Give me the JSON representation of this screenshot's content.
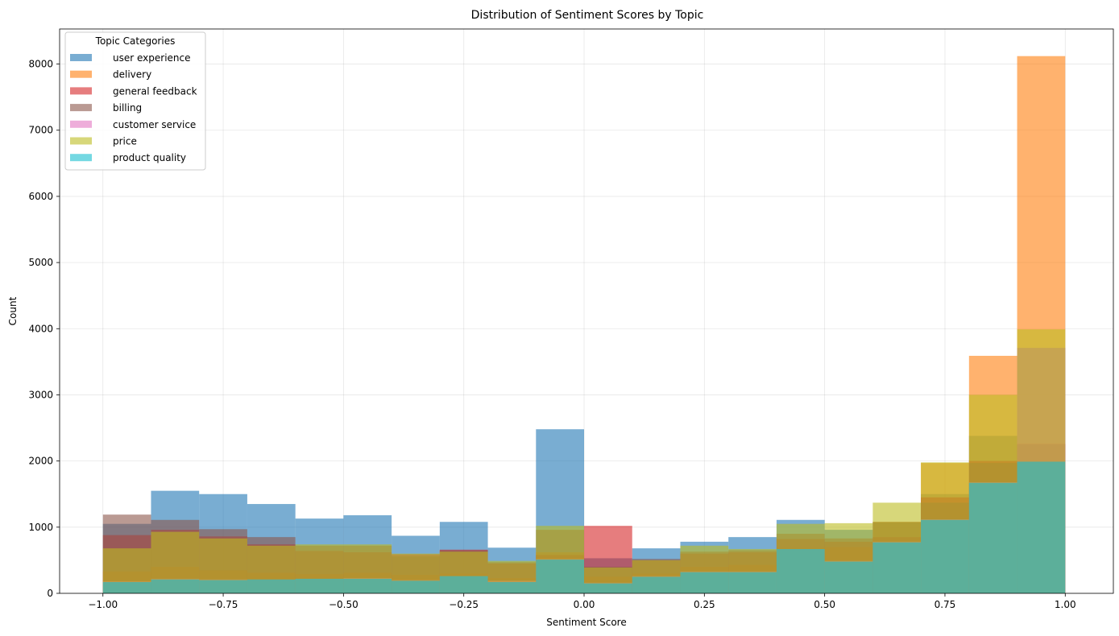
{
  "chart_data": {
    "type": "histogram",
    "title": "Distribution of Sentiment Scores by Topic",
    "xlabel": "Sentiment Score",
    "ylabel": "Count",
    "xlim": [
      -1.09,
      1.1
    ],
    "ylim": [
      0,
      8530
    ],
    "grid": true,
    "legend_title": "Topic Categories",
    "legend_position": "top-left",
    "alpha": 0.6,
    "bin_edges": [
      -1.0,
      -0.9,
      -0.8,
      -0.7,
      -0.6,
      -0.5,
      -0.4,
      -0.3,
      -0.2,
      -0.1,
      0.0,
      0.1,
      0.2,
      0.3,
      0.4,
      0.5,
      0.6,
      0.7,
      0.8,
      0.9,
      1.0
    ],
    "x_ticks": [
      -1.0,
      -0.75,
      -0.5,
      -0.25,
      0.0,
      0.25,
      0.5,
      0.75,
      1.0
    ],
    "x_tick_labels": [
      "−1.00",
      "−0.75",
      "−0.50",
      "−0.25",
      "0.00",
      "0.25",
      "0.50",
      "0.75",
      "1.00"
    ],
    "y_ticks": [
      0,
      1000,
      2000,
      3000,
      4000,
      5000,
      6000,
      7000,
      8000
    ],
    "y_tick_labels": [
      "0",
      "1000",
      "2000",
      "3000",
      "4000",
      "5000",
      "6000",
      "7000",
      "8000"
    ],
    "series": [
      {
        "name": "user experience",
        "color": "#1f77b4",
        "values": [
          1050,
          1550,
          1500,
          1350,
          1130,
          1180,
          870,
          1080,
          690,
          2480,
          530,
          680,
          780,
          850,
          1110,
          960,
          1070,
          1500,
          2380,
          3710
        ]
      },
      {
        "name": "delivery",
        "color": "#ff7f0e",
        "values": [
          330,
          400,
          350,
          310,
          290,
          310,
          280,
          300,
          230,
          620,
          250,
          300,
          400,
          430,
          690,
          700,
          1080,
          1970,
          3590,
          8120
        ]
      },
      {
        "name": "general feedback",
        "color": "#d62728",
        "values": [
          880,
          960,
          860,
          740,
          640,
          620,
          590,
          660,
          450,
          580,
          1020,
          500,
          600,
          620,
          820,
          780,
          850,
          1450,
          2000,
          2260
        ]
      },
      {
        "name": "billing",
        "color": "#8c564b",
        "values": [
          1190,
          1110,
          970,
          850,
          720,
          720,
          560,
          650,
          470,
          960,
          400,
          520,
          630,
          650,
          900,
          830,
          1080,
          1370,
          1970,
          2250
        ]
      },
      {
        "name": "customer service",
        "color": "#e377c2",
        "values": [
          180,
          220,
          210,
          210,
          220,
          230,
          200,
          260,
          190,
          520,
          160,
          260,
          330,
          330,
          670,
          490,
          780,
          1120,
          1680,
          3710
        ]
      },
      {
        "name": "price",
        "color": "#bcbd22",
        "values": [
          680,
          930,
          830,
          720,
          740,
          740,
          600,
          630,
          490,
          1020,
          390,
          500,
          720,
          670,
          1050,
          1060,
          1370,
          1980,
          3000,
          3990
        ]
      },
      {
        "name": "product quality",
        "color": "#17becf",
        "values": [
          170,
          210,
          200,
          210,
          220,
          220,
          190,
          260,
          170,
          510,
          150,
          250,
          320,
          320,
          670,
          480,
          770,
          1110,
          1670,
          1990
        ]
      }
    ]
  }
}
